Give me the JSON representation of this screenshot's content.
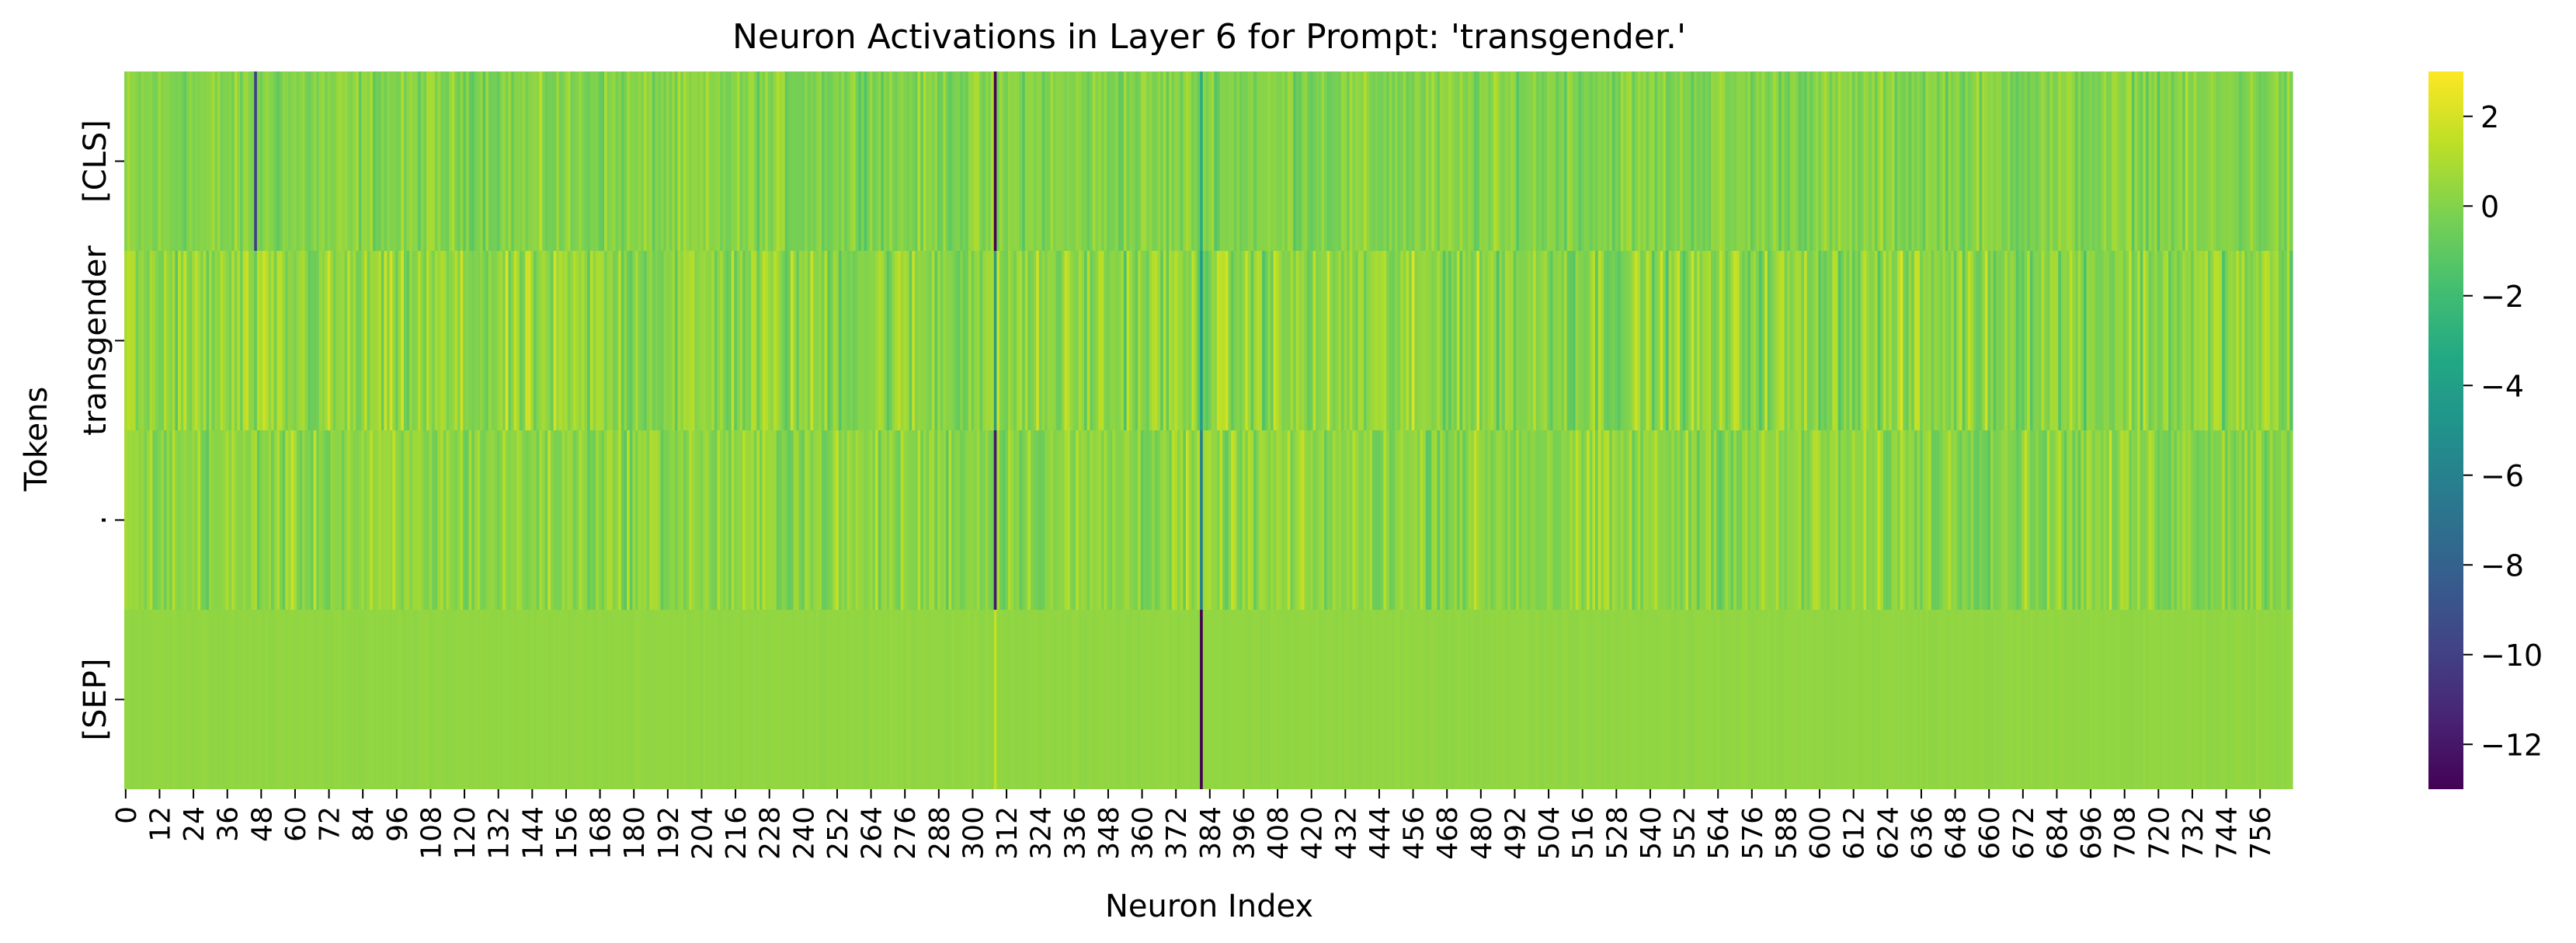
{
  "chart_data": {
    "type": "heatmap",
    "title": "Neuron Activations in Layer 6 for Prompt: 'transgender.'",
    "xlabel": "Neuron Index",
    "ylabel": "Tokens",
    "rows": [
      "[CLS]",
      "transgender",
      ".",
      "[SEP]"
    ],
    "n_columns": 768,
    "x_tick_labels": [
      "0",
      "12",
      "24",
      "36",
      "48",
      "60",
      "72",
      "84",
      "96",
      "108",
      "120",
      "132",
      "144",
      "156",
      "168",
      "180",
      "192",
      "204",
      "216",
      "228",
      "240",
      "252",
      "264",
      "276",
      "288",
      "300",
      "312",
      "324",
      "336",
      "348",
      "360",
      "372",
      "384",
      "396",
      "408",
      "420",
      "432",
      "444",
      "456",
      "468",
      "480",
      "492",
      "504",
      "516",
      "528",
      "540",
      "552",
      "564",
      "576",
      "588",
      "600",
      "612",
      "624",
      "636",
      "648",
      "660",
      "672",
      "684",
      "696",
      "708",
      "720",
      "732",
      "744",
      "756"
    ],
    "color_scale": {
      "colormap": "viridis",
      "vmin": -13,
      "vmax": 3,
      "tick_labels": [
        "2",
        "0",
        "−2",
        "−4",
        "−6",
        "−8",
        "−10",
        "−12"
      ],
      "tick_values": [
        2,
        0,
        -2,
        -4,
        -6,
        -8,
        -10,
        -12
      ]
    },
    "row_profiles": [
      {
        "token": "[CLS]",
        "typical_range": [
          -1.5,
          1.5
        ],
        "outliers": [
          {
            "neuron": 46,
            "value": -10
          },
          {
            "neuron": 308,
            "value": -13
          },
          {
            "neuron": 381,
            "value": -3
          }
        ]
      },
      {
        "token": "transgender",
        "typical_range": [
          -2,
          2.5
        ],
        "outliers": [
          {
            "neuron": 308,
            "value": -4
          },
          {
            "neuron": 381,
            "value": -4
          }
        ]
      },
      {
        "token": ".",
        "typical_range": [
          -1.5,
          2
        ],
        "outliers": [
          {
            "neuron": 308,
            "value": -12
          },
          {
            "neuron": 381,
            "value": -6
          }
        ]
      },
      {
        "token": "[SEP]",
        "typical_range": [
          0.2,
          0.5
        ],
        "outliers": [
          {
            "neuron": 308,
            "value": 1.5
          },
          {
            "neuron": 381,
            "value": -13
          }
        ]
      }
    ]
  }
}
